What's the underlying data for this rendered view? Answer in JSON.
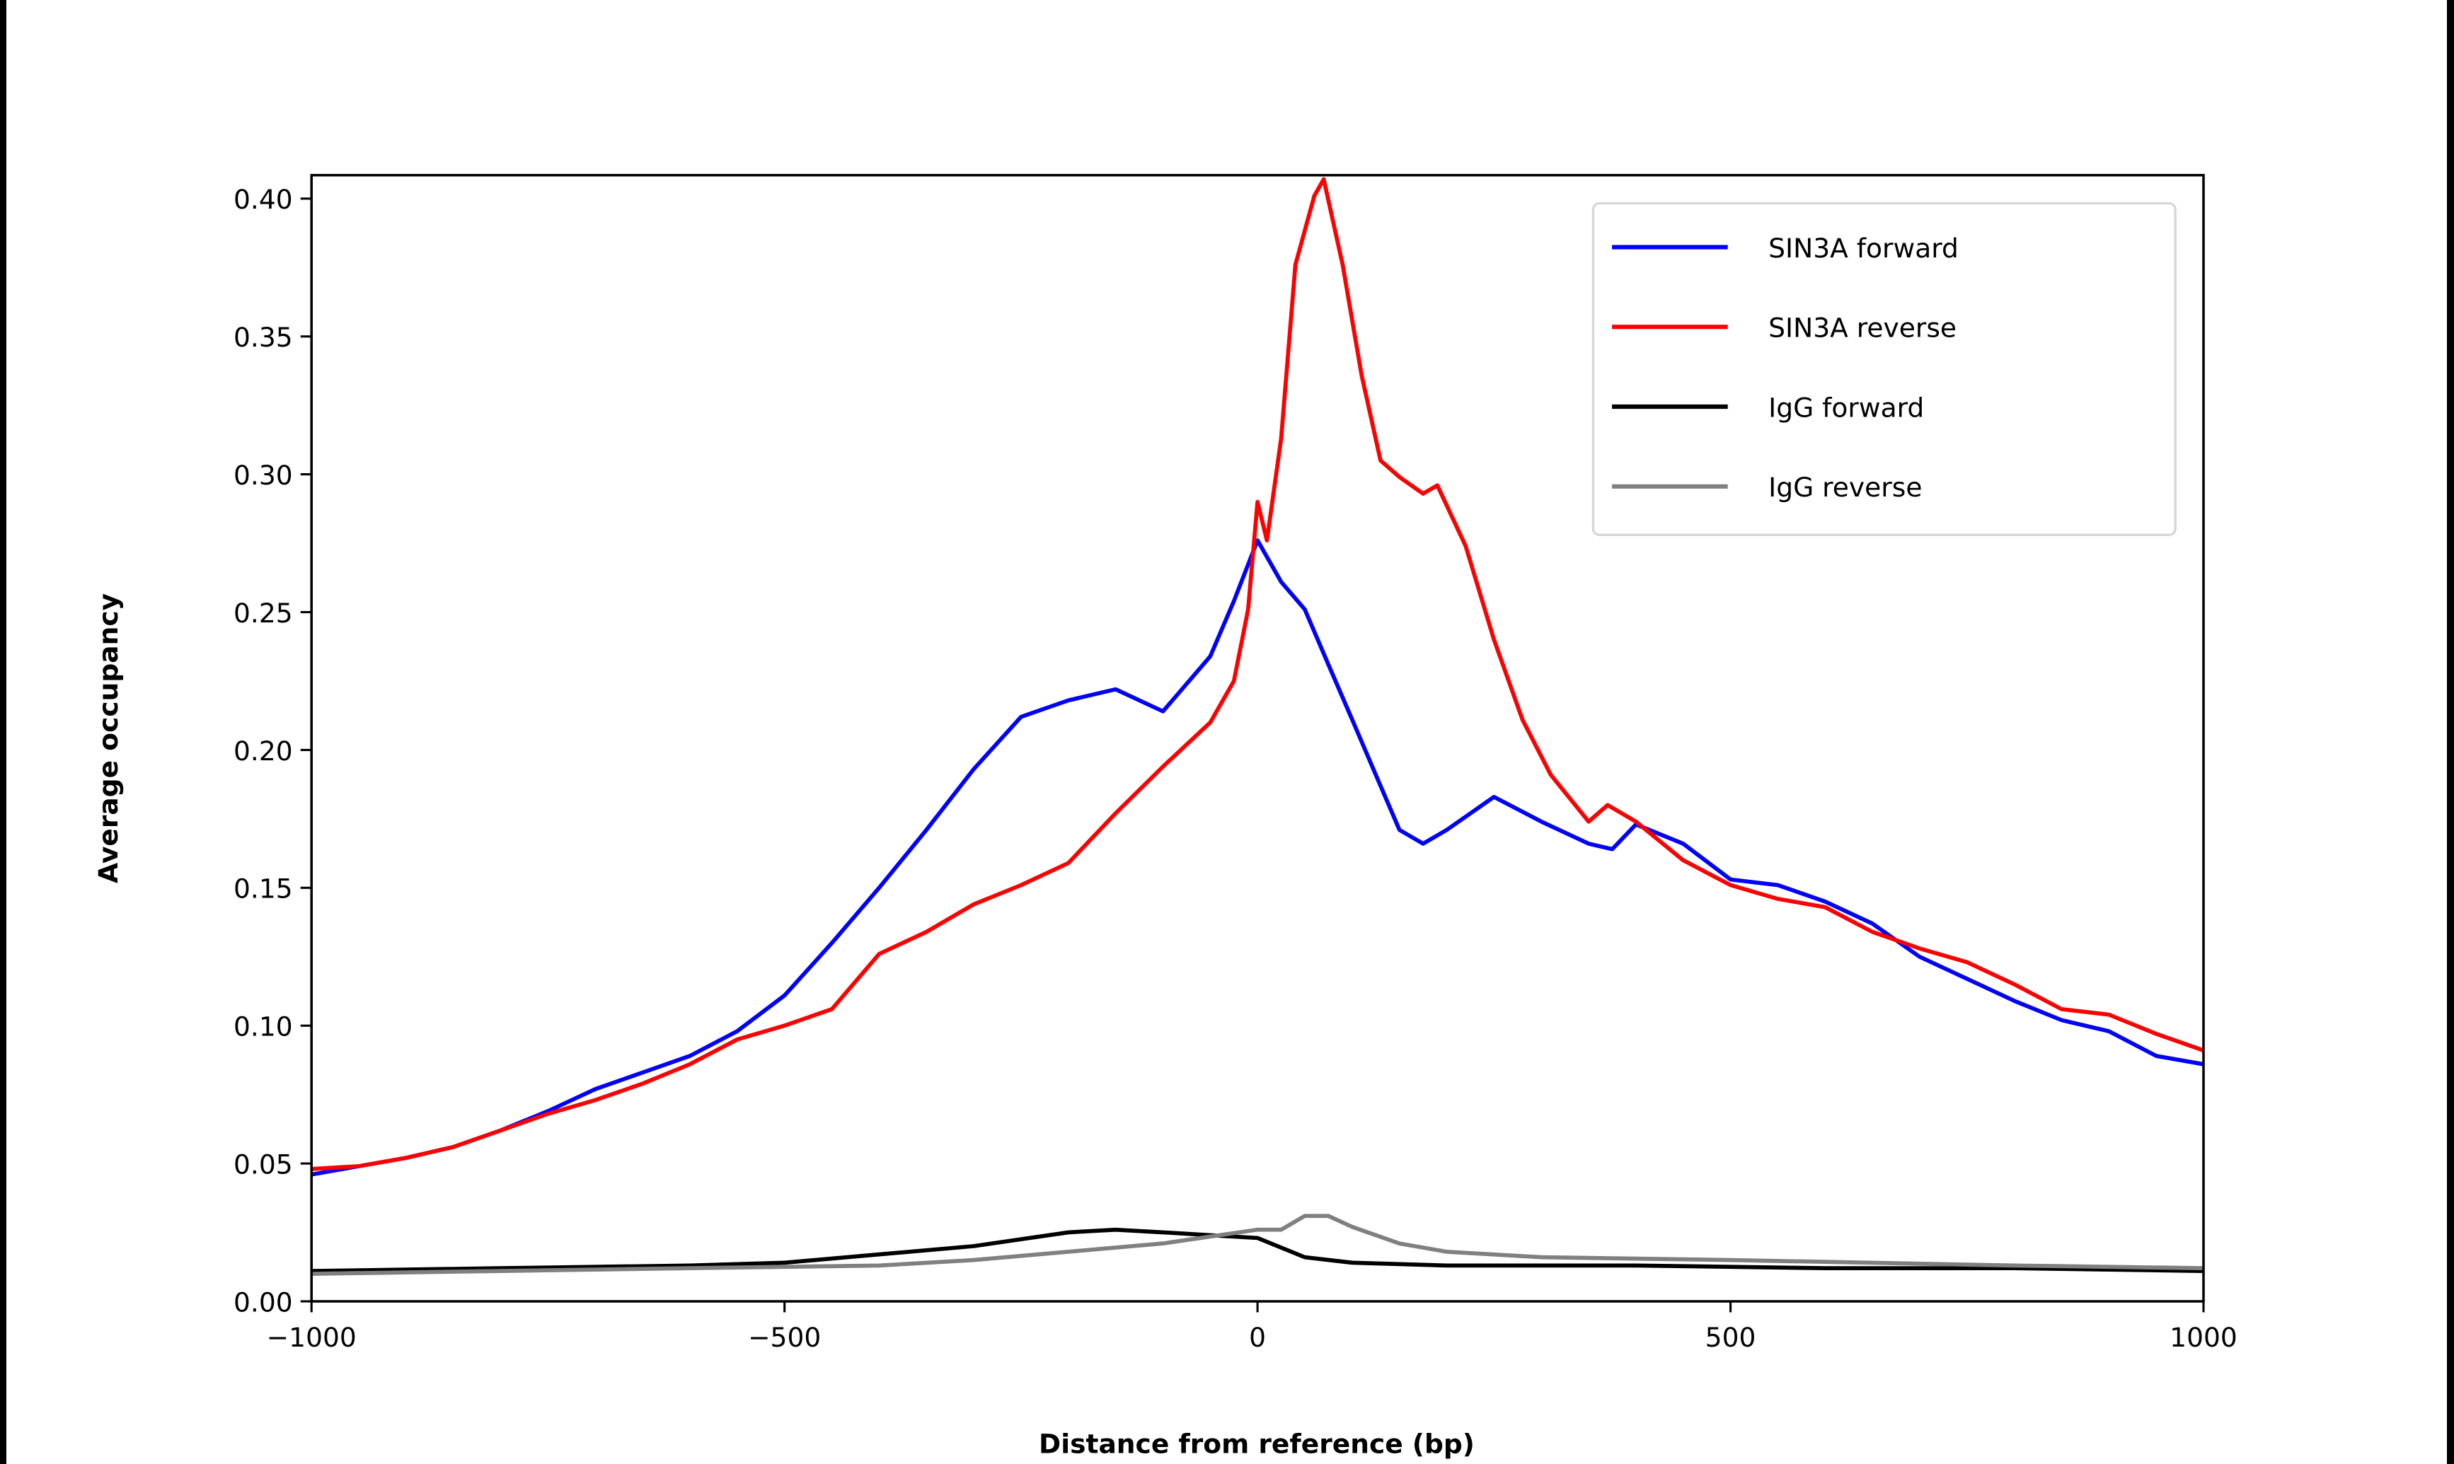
{
  "chart_data": {
    "type": "line",
    "title": "",
    "xlabel": "Distance from reference (bp)",
    "ylabel": "Average occupancy",
    "xlim": [
      -1000,
      1000
    ],
    "ylim": [
      0,
      0.4085
    ],
    "xticks": [
      -1000,
      -500,
      0,
      500,
      1000
    ],
    "xtick_labels": [
      "−1000",
      "−500",
      "0",
      "500",
      "1000"
    ],
    "yticks": [
      0,
      0.05,
      0.1,
      0.15,
      0.2,
      0.25,
      0.3,
      0.35,
      0.4
    ],
    "ytick_labels": [
      "0.00",
      "0.05",
      "0.10",
      "0.15",
      "0.20",
      "0.25",
      "0.30",
      "0.35",
      "0.40"
    ],
    "grid": false,
    "legend_position": "top-right",
    "series": [
      {
        "name": "SIN3A forward",
        "color": "#0000ff",
        "x": [
          -1000,
          -950,
          -900,
          -850,
          -800,
          -750,
          -700,
          -650,
          -600,
          -550,
          -500,
          -450,
          -400,
          -350,
          -300,
          -250,
          -200,
          -150,
          -100,
          -50,
          -25,
          0,
          25,
          50,
          75,
          100,
          125,
          150,
          175,
          200,
          250,
          300,
          350,
          375,
          400,
          450,
          500,
          550,
          600,
          650,
          700,
          750,
          800,
          850,
          900,
          950,
          1000
        ],
        "y": [
          0.046,
          0.049,
          0.052,
          0.056,
          0.062,
          0.069,
          0.077,
          0.083,
          0.089,
          0.098,
          0.111,
          0.13,
          0.15,
          0.171,
          0.193,
          0.212,
          0.218,
          0.222,
          0.214,
          0.234,
          0.254,
          0.276,
          0.261,
          0.251,
          0.231,
          0.211,
          0.191,
          0.171,
          0.166,
          0.171,
          0.183,
          0.174,
          0.166,
          0.164,
          0.173,
          0.166,
          0.153,
          0.151,
          0.145,
          0.137,
          0.125,
          0.117,
          0.109,
          0.102,
          0.098,
          0.089,
          0.086
        ]
      },
      {
        "name": "SIN3A reverse",
        "color": "#ff0000",
        "x": [
          -1000,
          -950,
          -900,
          -850,
          -800,
          -750,
          -700,
          -650,
          -600,
          -550,
          -500,
          -450,
          -400,
          -350,
          -300,
          -250,
          -200,
          -150,
          -100,
          -50,
          -25,
          -10,
          0,
          10,
          25,
          40,
          60,
          70,
          90,
          110,
          130,
          150,
          175,
          190,
          220,
          250,
          280,
          310,
          350,
          370,
          400,
          450,
          500,
          550,
          600,
          650,
          700,
          750,
          800,
          850,
          900,
          950,
          1000
        ],
        "y": [
          0.048,
          0.049,
          0.052,
          0.056,
          0.062,
          0.068,
          0.073,
          0.079,
          0.086,
          0.095,
          0.1,
          0.106,
          0.126,
          0.134,
          0.144,
          0.151,
          0.159,
          0.177,
          0.194,
          0.21,
          0.225,
          0.251,
          0.29,
          0.276,
          0.313,
          0.376,
          0.401,
          0.407,
          0.376,
          0.336,
          0.305,
          0.299,
          0.293,
          0.296,
          0.274,
          0.24,
          0.211,
          0.191,
          0.174,
          0.18,
          0.174,
          0.16,
          0.151,
          0.146,
          0.143,
          0.134,
          0.128,
          0.123,
          0.115,
          0.106,
          0.104,
          0.097,
          0.091
        ]
      },
      {
        "name": "IgG forward",
        "color": "#000000",
        "x": [
          -1000,
          -800,
          -600,
          -500,
          -400,
          -300,
          -200,
          -150,
          -100,
          -50,
          0,
          50,
          100,
          200,
          400,
          600,
          800,
          1000
        ],
        "y": [
          0.011,
          0.012,
          0.013,
          0.014,
          0.017,
          0.02,
          0.025,
          0.026,
          0.025,
          0.024,
          0.023,
          0.016,
          0.014,
          0.013,
          0.013,
          0.012,
          0.012,
          0.011
        ]
      },
      {
        "name": "IgG reverse",
        "color": "#808080",
        "x": [
          -1000,
          -800,
          -600,
          -400,
          -300,
          -200,
          -100,
          0,
          25,
          50,
          75,
          100,
          150,
          200,
          300,
          500,
          800,
          1000
        ],
        "y": [
          0.01,
          0.011,
          0.012,
          0.013,
          0.015,
          0.018,
          0.021,
          0.026,
          0.026,
          0.031,
          0.031,
          0.027,
          0.021,
          0.018,
          0.016,
          0.015,
          0.013,
          0.012
        ]
      }
    ]
  }
}
